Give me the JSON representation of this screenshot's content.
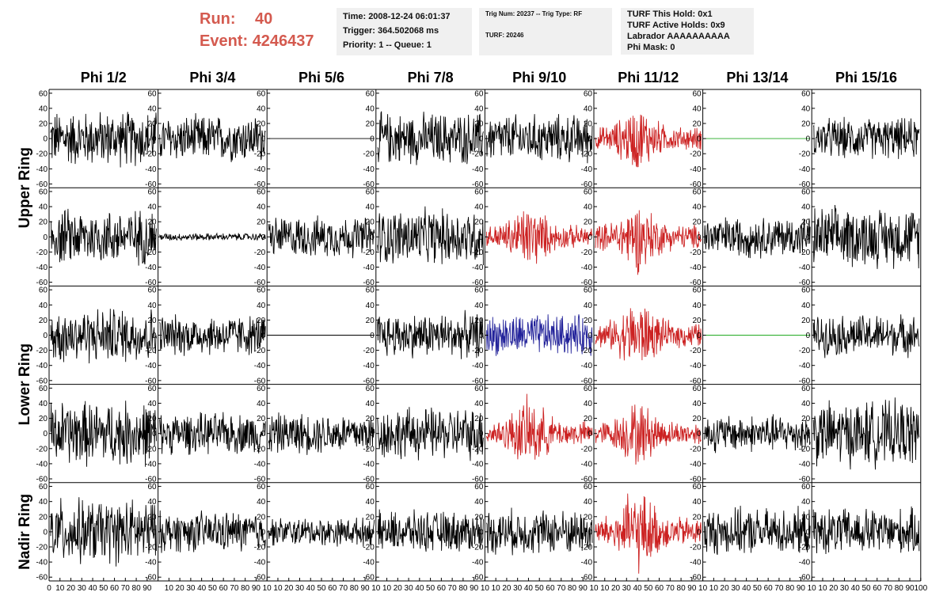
{
  "header": {
    "run_label": "Run:",
    "run_value": "40",
    "event_label": "Event:",
    "event_value": "4246437",
    "time": "Time: 2008-12-24 06:01:37",
    "trigger": "Trigger: 364.502068 ms",
    "priority": "Priority: 1 -- Queue: 1",
    "trig_num": "Trig Num: 20237 -- Trig Type: RF",
    "turf": "TURF: 20246",
    "turf_this_hold": "TURF This Hold: 0x1",
    "turf_active_holds": "TURF Active Holds: 0x9",
    "labrador": "Labrador AAAAAAAAAA",
    "phi_mask": "Phi Mask: 0"
  },
  "colors": {
    "run_text": "#d45a4f",
    "info_bg": "#f0f0f0",
    "trace_black": "#000000",
    "trace_red": "#cc2222",
    "trace_blue": "#22229a",
    "trace_green": "#22aa22"
  },
  "chart_data": {
    "type": "line",
    "columns": [
      "Phi 1/2",
      "Phi 3/4",
      "Phi 5/6",
      "Phi 7/8",
      "Phi 9/10",
      "Phi 11/12",
      "Phi 13/14",
      "Phi 15/16"
    ],
    "ring_labels": [
      "Upper Ring",
      "Lower Ring",
      "Nadir Ring"
    ],
    "rows": 5,
    "ring_row_groups": [
      [
        0,
        1
      ],
      [
        2,
        3
      ],
      [
        4
      ]
    ],
    "ylim": [
      -65,
      65
    ],
    "yticks": [
      -60,
      -40,
      -20,
      0,
      20,
      40,
      60
    ],
    "xlim": [
      0,
      100
    ],
    "xticks": [
      0,
      10,
      20,
      30,
      40,
      50,
      60,
      70,
      80,
      90,
      100
    ],
    "xticks_first_panel": [
      "0",
      "10",
      "20",
      "30",
      "40",
      "50",
      "60",
      "70",
      "80",
      "90"
    ],
    "xticks_other_panels": [
      "10",
      "20",
      "30",
      "40",
      "50",
      "60",
      "70",
      "80",
      "90",
      "10"
    ],
    "xticks_last_panel": [
      "10",
      "20",
      "30",
      "40",
      "50",
      "60",
      "70",
      "80",
      "90",
      "100"
    ],
    "panels": [
      [
        {
          "color": "black",
          "amp": 30,
          "pattern": "noise"
        },
        {
          "color": "black",
          "amp": 25,
          "pattern": "noise"
        },
        {
          "color": "black",
          "amp": 0,
          "pattern": "flat"
        },
        {
          "color": "black",
          "amp": 28,
          "pattern": "noise"
        },
        {
          "color": "black",
          "amp": 26,
          "pattern": "noise"
        },
        {
          "color": "red",
          "amp": 35,
          "pattern": "pulse"
        },
        {
          "color": "green",
          "amp": 0,
          "pattern": "flat"
        },
        {
          "color": "black",
          "amp": 22,
          "pattern": "noise"
        }
      ],
      [
        {
          "color": "black",
          "amp": 30,
          "pattern": "noise"
        },
        {
          "color": "black",
          "amp": 4,
          "pattern": "noise"
        },
        {
          "color": "black",
          "amp": 22,
          "pattern": "noise"
        },
        {
          "color": "black",
          "amp": 30,
          "pattern": "noise"
        },
        {
          "color": "red",
          "amp": 35,
          "pattern": "pulse"
        },
        {
          "color": "red",
          "amp": 38,
          "pattern": "pulse"
        },
        {
          "color": "black",
          "amp": 22,
          "pattern": "noise"
        },
        {
          "color": "black",
          "amp": 32,
          "pattern": "noise"
        }
      ],
      [
        {
          "color": "black",
          "amp": 30,
          "pattern": "noise"
        },
        {
          "color": "black",
          "amp": 22,
          "pattern": "noise"
        },
        {
          "color": "black",
          "amp": 0,
          "pattern": "flat"
        },
        {
          "color": "black",
          "amp": 24,
          "pattern": "noise"
        },
        {
          "color": "blue",
          "amp": 22,
          "pattern": "noise"
        },
        {
          "color": "red",
          "amp": 38,
          "pattern": "pulse"
        },
        {
          "color": "green",
          "amp": 0,
          "pattern": "flat"
        },
        {
          "color": "black",
          "amp": 22,
          "pattern": "noise"
        }
      ],
      [
        {
          "color": "black",
          "amp": 35,
          "pattern": "noise"
        },
        {
          "color": "black",
          "amp": 22,
          "pattern": "noise"
        },
        {
          "color": "black",
          "amp": 22,
          "pattern": "noise"
        },
        {
          "color": "black",
          "amp": 28,
          "pattern": "noise"
        },
        {
          "color": "red",
          "amp": 38,
          "pattern": "pulse"
        },
        {
          "color": "red",
          "amp": 35,
          "pattern": "pulse"
        },
        {
          "color": "black",
          "amp": 20,
          "pattern": "noise"
        },
        {
          "color": "black",
          "amp": 35,
          "pattern": "noise"
        }
      ],
      [
        {
          "color": "black",
          "amp": 35,
          "pattern": "noise"
        },
        {
          "color": "black",
          "amp": 22,
          "pattern": "noise"
        },
        {
          "color": "black",
          "amp": 15,
          "pattern": "noise"
        },
        {
          "color": "black",
          "amp": 22,
          "pattern": "noise"
        },
        {
          "color": "black",
          "amp": 24,
          "pattern": "noise"
        },
        {
          "color": "red",
          "amp": 45,
          "pattern": "pulse"
        },
        {
          "color": "black",
          "amp": 25,
          "pattern": "noise"
        },
        {
          "color": "black",
          "amp": 25,
          "pattern": "noise"
        }
      ]
    ]
  }
}
